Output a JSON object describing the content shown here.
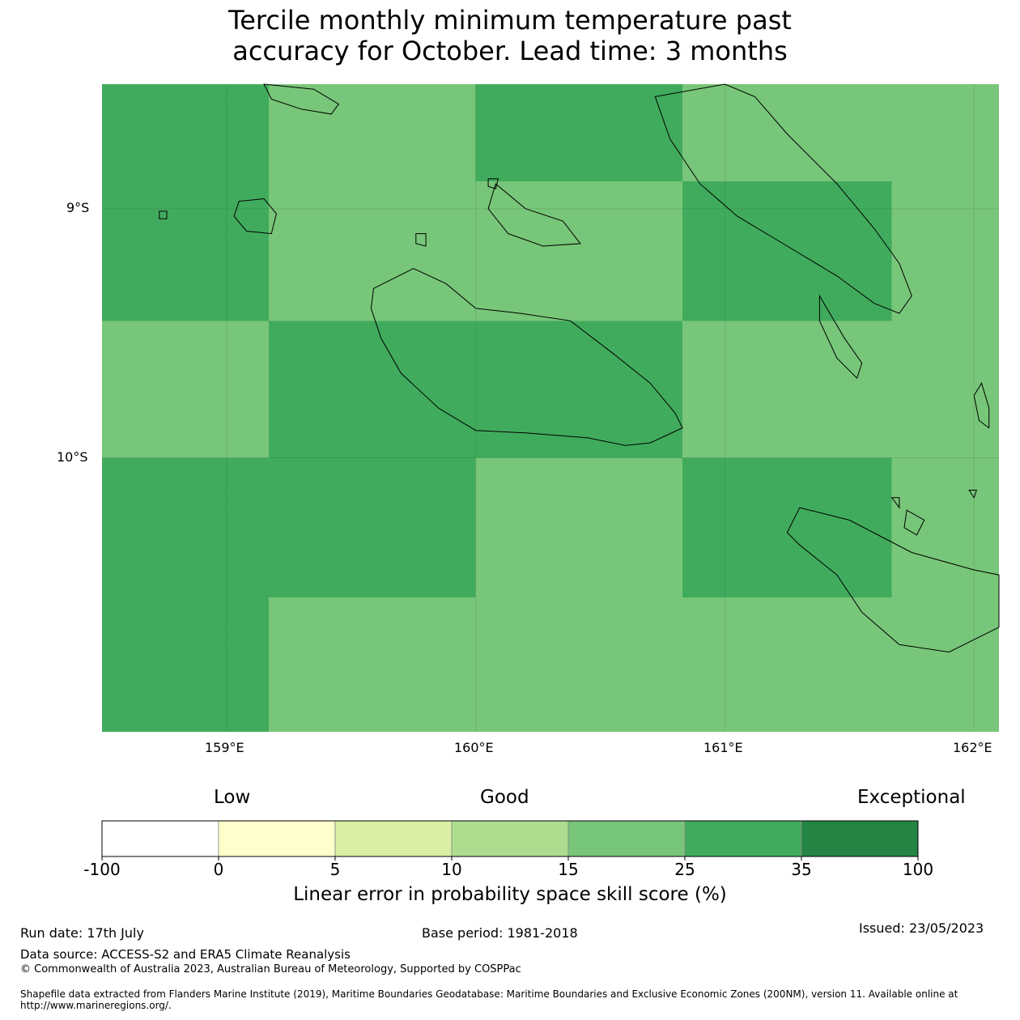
{
  "title_line1": "Tercile monthly minimum temperature past",
  "title_line2": "accuracy for October. Lead time: 3 months",
  "map": {
    "lon_range": [
      158.5,
      162.1
    ],
    "lat_range": [
      -11.1,
      -8.5
    ],
    "lon_ticks": [
      "159°E",
      "160°E",
      "161°E",
      "162°E"
    ],
    "lat_ticks": [
      "9°S",
      "10°S"
    ],
    "colors": {
      "mid": "#41ab5d",
      "light": "#78c679"
    },
    "cells": [
      {
        "lon": [
          158.5,
          159.17
        ],
        "lat": [
          -8.5,
          -8.95
        ],
        "level": "mid"
      },
      {
        "lon": [
          159.17,
          160.0
        ],
        "lat": [
          -8.5,
          -8.95
        ],
        "level": "light"
      },
      {
        "lon": [
          160.0,
          160.83
        ],
        "lat": [
          -8.5,
          -8.89
        ],
        "level": "mid"
      },
      {
        "lon": [
          160.0,
          160.83
        ],
        "lat": [
          -8.89,
          -8.95
        ],
        "level": "light"
      },
      {
        "lon": [
          160.83,
          162.1
        ],
        "lat": [
          -8.5,
          -8.89
        ],
        "level": "light"
      },
      {
        "lon": [
          160.83,
          161.67
        ],
        "lat": [
          -8.89,
          -9.45
        ],
        "level": "mid"
      },
      {
        "lon": [
          161.67,
          162.1
        ],
        "lat": [
          -8.89,
          -9.45
        ],
        "level": "light"
      },
      {
        "lon": [
          158.5,
          159.17
        ],
        "lat": [
          -8.95,
          -9.45
        ],
        "level": "mid"
      },
      {
        "lon": [
          159.17,
          160.83
        ],
        "lat": [
          -8.95,
          -9.45
        ],
        "level": "light"
      },
      {
        "lon": [
          158.5,
          159.17
        ],
        "lat": [
          -9.45,
          -10.0
        ],
        "level": "light"
      },
      {
        "lon": [
          159.17,
          160.83
        ],
        "lat": [
          -9.45,
          -10.0
        ],
        "level": "mid"
      },
      {
        "lon": [
          160.83,
          162.1
        ],
        "lat": [
          -9.45,
          -10.0
        ],
        "level": "light"
      },
      {
        "lon": [
          158.5,
          160.0
        ],
        "lat": [
          -10.0,
          -10.56
        ],
        "level": "mid"
      },
      {
        "lon": [
          160.0,
          160.83
        ],
        "lat": [
          -10.0,
          -10.56
        ],
        "level": "light"
      },
      {
        "lon": [
          160.83,
          161.67
        ],
        "lat": [
          -10.0,
          -10.56
        ],
        "level": "mid"
      },
      {
        "lon": [
          161.67,
          162.1
        ],
        "lat": [
          -10.0,
          -10.56
        ],
        "level": "light"
      },
      {
        "lon": [
          158.5,
          159.17
        ],
        "lat": [
          -10.56,
          -11.1
        ],
        "level": "mid"
      },
      {
        "lon": [
          159.17,
          162.1
        ],
        "lat": [
          -10.56,
          -11.1
        ],
        "level": "light"
      }
    ],
    "islands": [
      [
        [
          159.59,
          -9.32
        ],
        [
          159.75,
          -9.24
        ],
        [
          159.88,
          -9.3
        ],
        [
          160.0,
          -9.4
        ],
        [
          160.18,
          -9.42
        ],
        [
          160.38,
          -9.45
        ],
        [
          160.55,
          -9.58
        ],
        [
          160.7,
          -9.7
        ],
        [
          160.8,
          -9.82
        ],
        [
          160.83,
          -9.88
        ],
        [
          160.7,
          -9.94
        ],
        [
          160.6,
          -9.95
        ],
        [
          160.45,
          -9.92
        ],
        [
          160.2,
          -9.9
        ],
        [
          160.0,
          -9.89
        ],
        [
          159.85,
          -9.8
        ],
        [
          159.7,
          -9.66
        ],
        [
          159.62,
          -9.52
        ],
        [
          159.58,
          -9.4
        ]
      ],
      [
        [
          161.0,
          -8.5
        ],
        [
          161.12,
          -8.55
        ],
        [
          161.25,
          -8.7
        ],
        [
          161.45,
          -8.9
        ],
        [
          161.6,
          -9.08
        ],
        [
          161.7,
          -9.22
        ],
        [
          161.75,
          -9.35
        ],
        [
          161.7,
          -9.42
        ],
        [
          161.6,
          -9.38
        ],
        [
          161.45,
          -9.27
        ],
        [
          161.25,
          -9.15
        ],
        [
          161.05,
          -9.03
        ],
        [
          160.9,
          -8.9
        ],
        [
          160.78,
          -8.72
        ],
        [
          160.72,
          -8.55
        ]
      ],
      [
        [
          161.3,
          -10.2
        ],
        [
          161.5,
          -10.25
        ],
        [
          161.75,
          -10.38
        ],
        [
          162.0,
          -10.45
        ],
        [
          162.1,
          -10.47
        ],
        [
          162.1,
          -10.68
        ],
        [
          161.9,
          -10.78
        ],
        [
          161.7,
          -10.75
        ],
        [
          161.55,
          -10.62
        ],
        [
          161.45,
          -10.47
        ],
        [
          161.3,
          -10.35
        ],
        [
          161.25,
          -10.3
        ]
      ],
      [
        [
          160.08,
          -8.9
        ],
        [
          160.2,
          -9.0
        ],
        [
          160.35,
          -9.05
        ],
        [
          160.42,
          -9.14
        ],
        [
          160.27,
          -9.15
        ],
        [
          160.13,
          -9.1
        ],
        [
          160.05,
          -9.0
        ]
      ],
      [
        [
          159.05,
          -8.97
        ],
        [
          159.15,
          -8.96
        ],
        [
          159.2,
          -9.02
        ],
        [
          159.18,
          -9.1
        ],
        [
          159.08,
          -9.09
        ],
        [
          159.03,
          -9.03
        ]
      ],
      [
        [
          161.38,
          -9.35
        ],
        [
          161.48,
          -9.52
        ],
        [
          161.55,
          -9.62
        ],
        [
          161.53,
          -9.68
        ],
        [
          161.45,
          -9.6
        ],
        [
          161.38,
          -9.45
        ]
      ],
      [
        [
          162.03,
          -9.7
        ],
        [
          162.06,
          -9.8
        ],
        [
          162.06,
          -9.88
        ],
        [
          162.02,
          -9.85
        ],
        [
          162.0,
          -9.75
        ]
      ],
      [
        [
          161.73,
          -10.21
        ],
        [
          161.8,
          -10.25
        ],
        [
          161.77,
          -10.31
        ],
        [
          161.72,
          -10.28
        ]
      ],
      [
        [
          159.76,
          -9.1
        ],
        [
          159.8,
          -9.1
        ],
        [
          159.8,
          -9.15
        ],
        [
          159.76,
          -9.14
        ]
      ],
      [
        [
          160.05,
          -8.88
        ],
        [
          160.09,
          -8.88
        ],
        [
          160.08,
          -8.92
        ],
        [
          160.05,
          -8.91
        ]
      ],
      [
        [
          158.73,
          -9.01
        ],
        [
          158.76,
          -9.01
        ],
        [
          158.76,
          -9.04
        ],
        [
          158.73,
          -9.04
        ]
      ],
      [
        [
          159.15,
          -8.5
        ],
        [
          159.35,
          -8.52
        ],
        [
          159.45,
          -8.58
        ],
        [
          159.42,
          -8.62
        ],
        [
          159.3,
          -8.6
        ],
        [
          159.18,
          -8.56
        ]
      ],
      [
        [
          161.98,
          -10.13
        ],
        [
          162.01,
          -10.13
        ],
        [
          162.0,
          -10.16
        ]
      ],
      [
        [
          161.67,
          -10.16
        ],
        [
          161.7,
          -10.16
        ],
        [
          161.7,
          -10.2
        ]
      ]
    ]
  },
  "colorbar": {
    "headers": [
      "Low",
      "Good",
      "Exceptional"
    ],
    "bins": [
      {
        "from": "-100",
        "to": "0",
        "color": "#ffffff"
      },
      {
        "from": "0",
        "to": "5",
        "color": "#ffffcc"
      },
      {
        "from": "5",
        "to": "10",
        "color": "#d9f0a3"
      },
      {
        "from": "10",
        "to": "15",
        "color": "#addd8e"
      },
      {
        "from": "15",
        "to": "25",
        "color": "#78c679"
      },
      {
        "from": "25",
        "to": "35",
        "color": "#41ab5d"
      },
      {
        "from": "35",
        "to": "100",
        "color": "#238443"
      }
    ],
    "ticks": [
      "-100",
      "0",
      "5",
      "10",
      "15",
      "25",
      "35",
      "100"
    ],
    "label": "Linear error in probability space skill score (%)"
  },
  "footer": {
    "run_date": "Run date: 17th July",
    "base_period": "Base period: 1981-2018",
    "issued": "Issued: 23/05/2023",
    "data_source": "Data source: ACCESS-S2 and ERA5 Climate Reanalysis",
    "copyright": "© Commonwealth of Australia 2023, Australian Bureau of Meteorology, Supported by COSPPac",
    "shapefile": "Shapefile data extracted from Flanders Marine Institute (2019), Maritime Boundaries Geodatabase: Maritime Boundaries and Exclusive Economic Zones (200NM), version 11. Available online at http://www.marineregions.org/."
  }
}
